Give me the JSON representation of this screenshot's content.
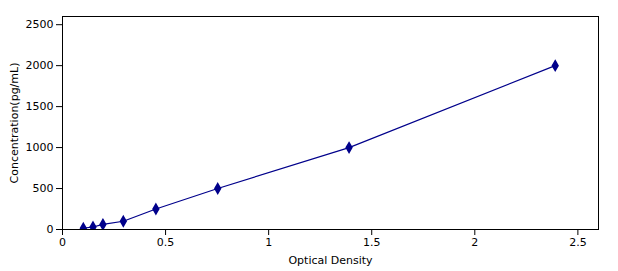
{
  "chart_data": {
    "type": "line",
    "x": [
      0.101,
      0.148,
      0.196,
      0.295,
      0.453,
      0.753,
      1.39,
      2.39
    ],
    "values": [
      15,
      31,
      62,
      101,
      250,
      500,
      1000,
      2000
    ],
    "color": "#00008B",
    "marker": "diamond",
    "xlabel": "Optical Density",
    "ylabel": "Concentration(pg/mL)",
    "xlim": [
      0,
      2.6
    ],
    "ylim": [
      0,
      2600
    ],
    "xticks": [
      0,
      0.5,
      1,
      1.5,
      2,
      2.5
    ],
    "yticks": [
      0,
      500,
      1000,
      1500,
      2000,
      2500
    ],
    "grid": false
  }
}
